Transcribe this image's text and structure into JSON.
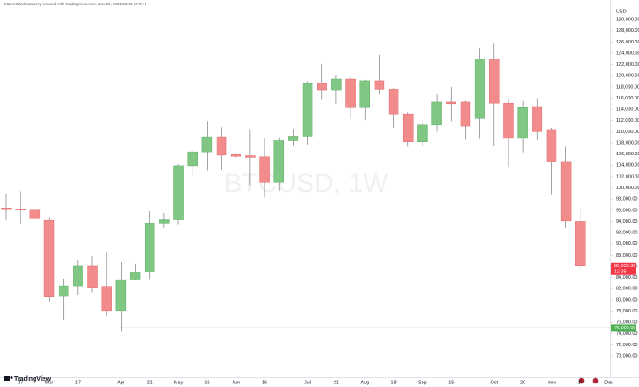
{
  "chart_data": {
    "type": "candlestick",
    "attribution": "MarketMindsMastery created with TradingView.com, Nov 20, 2025 22:03 UTC+2",
    "watermark": "BTCUSD, 1W",
    "brand": "TradingView",
    "currency": "USD",
    "categories": [
      null,
      "17",
      null,
      "Mar",
      null,
      "17",
      null,
      null,
      "Apr",
      null,
      "21",
      null,
      "May",
      null,
      "19",
      null,
      "Jun",
      null,
      "16",
      null,
      null,
      "Jul",
      null,
      "21",
      null,
      "Aug",
      null,
      "18",
      null,
      "Sep",
      null,
      "15",
      null,
      null,
      "Oct",
      null,
      "20",
      null,
      "Nov",
      null,
      "17",
      null,
      "Dec"
    ],
    "open": [
      96400,
      96200,
      96000,
      94200,
      80600,
      82500,
      86000,
      82400,
      78100,
      83700,
      85000,
      93700,
      94300,
      103900,
      106400,
      109100,
      105900,
      105700,
      105500,
      101000,
      108400,
      109200,
      118600,
      117500,
      119400,
      114300,
      119100,
      117600,
      113200,
      108200,
      111200,
      115300,
      115300,
      112400,
      123000,
      115100,
      108800,
      114500,
      110400,
      104700,
      94000,
      null,
      null
    ],
    "high": [
      99000,
      99400,
      96800,
      94600,
      83800,
      87100,
      87900,
      88500,
      86800,
      86500,
      95800,
      95500,
      104200,
      106800,
      111900,
      110800,
      106200,
      110500,
      108900,
      109000,
      110500,
      119000,
      122100,
      120000,
      119900,
      119300,
      123700,
      117800,
      113500,
      111500,
      116700,
      118000,
      115500,
      124900,
      125700,
      115800,
      115500,
      116000,
      110700,
      107300,
      96200,
      null,
      null
    ],
    "low": [
      94200,
      93600,
      78100,
      79700,
      76500,
      80900,
      81300,
      77100,
      74400,
      83500,
      83700,
      92800,
      93500,
      102300,
      103000,
      103100,
      105400,
      100500,
      98300,
      99500,
      107400,
      107700,
      115700,
      115000,
      112300,
      112100,
      116700,
      110700,
      107300,
      107300,
      110000,
      111900,
      108600,
      108700,
      107400,
      103700,
      106300,
      108500,
      98700,
      92800,
      85400,
      null,
      null
    ],
    "close": [
      96100,
      96000,
      94500,
      80500,
      82500,
      86000,
      82200,
      78100,
      83600,
      85000,
      93700,
      94300,
      103900,
      106400,
      109100,
      105800,
      105600,
      105400,
      101000,
      108400,
      109200,
      118600,
      117500,
      119400,
      114300,
      119100,
      117600,
      113200,
      108200,
      111200,
      115300,
      115000,
      111000,
      123000,
      115100,
      108800,
      114300,
      110000,
      104700,
      94100,
      86030.36,
      null,
      null
    ],
    "up_color": "#81c784",
    "down_color": "#f28b8b",
    "ylim": [
      66200,
      132200
    ],
    "yticks": [
      {
        "value": 70000,
        "label": "70,000.00"
      },
      {
        "value": 72000,
        "label": "72,000.00"
      },
      {
        "value": 74000,
        "label": "74,000.00"
      },
      {
        "value": 76000,
        "label": "76,000.00"
      },
      {
        "value": 78000,
        "label": "78,000.00"
      },
      {
        "value": 80000,
        "label": "80,000.00"
      },
      {
        "value": 82000,
        "label": "82,000.00"
      },
      {
        "value": 84000,
        "label": "84,000.00"
      },
      {
        "value": 86000,
        "label": "86,000.00"
      },
      {
        "value": 88000,
        "label": "88,000.00"
      },
      {
        "value": 90000,
        "label": "90,000.00"
      },
      {
        "value": 92000,
        "label": "92,000.00"
      },
      {
        "value": 94000,
        "label": "94,000.00"
      },
      {
        "value": 96000,
        "label": "96,000.00"
      },
      {
        "value": 98000,
        "label": "98,000.00"
      },
      {
        "value": 100000,
        "label": "100,000.00"
      },
      {
        "value": 102000,
        "label": "102,000.00"
      },
      {
        "value": 104000,
        "label": "104,000.00"
      },
      {
        "value": 106000,
        "label": "106,000.00"
      },
      {
        "value": 108000,
        "label": "108,000.00"
      },
      {
        "value": 110000,
        "label": "110,000.00"
      },
      {
        "value": 112000,
        "label": "112,000.00"
      },
      {
        "value": 114000,
        "label": "114,000.00"
      },
      {
        "value": 116000,
        "label": "116,000.00"
      },
      {
        "value": 118000,
        "label": "118,000.00"
      },
      {
        "value": 120000,
        "label": "120,000.00"
      },
      {
        "value": 122000,
        "label": "122,000.00"
      },
      {
        "value": 124000,
        "label": "124,000.00"
      },
      {
        "value": 126000,
        "label": "126,000.00"
      },
      {
        "value": 128000,
        "label": "128,000.00"
      },
      {
        "value": 130000,
        "label": "130,000.00"
      }
    ],
    "hline": {
      "value": 75000,
      "label": "75,000.00",
      "color": "#4caf50"
    },
    "last_price": {
      "value": 86030.36,
      "label": "86,030.36",
      "countdown": "12:35",
      "color": "#f23645"
    },
    "grid": false
  }
}
